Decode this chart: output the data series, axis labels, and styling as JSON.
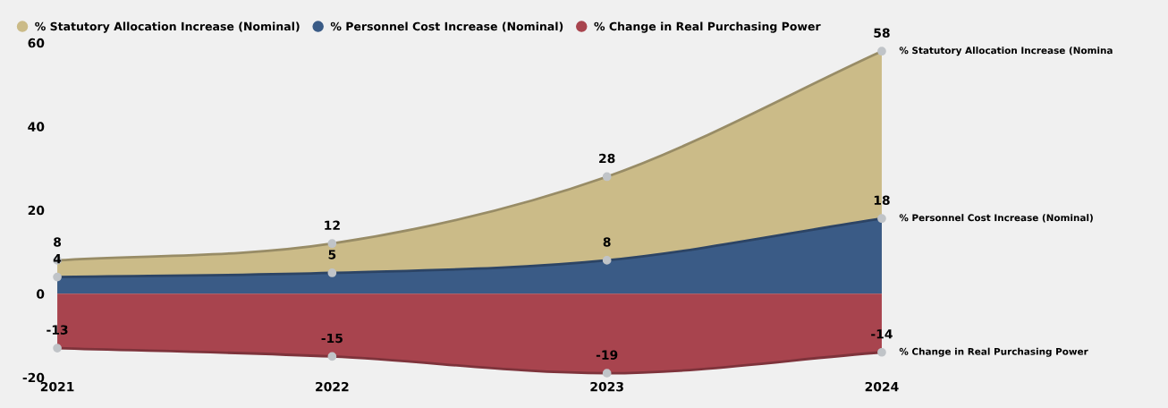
{
  "chart_data": {
    "type": "area",
    "categories": [
      "2021",
      "2022",
      "2023",
      "2024"
    ],
    "series": [
      {
        "name": "% Statutory Allocation Increase (Nominal)",
        "color": "#cbbb88",
        "values": [
          8,
          12,
          28,
          58
        ]
      },
      {
        "name": "% Personnel Cost Increase (Nominal)",
        "color": "#3a5b86",
        "values": [
          4,
          5,
          8,
          18
        ]
      },
      {
        "name": "% Change in Real Purchasing Power",
        "color": "#a8444e",
        "values": [
          -13,
          -15,
          -19,
          -14
        ]
      }
    ],
    "ylim": [
      -20,
      60
    ],
    "yticks": [
      -20,
      0,
      20,
      40,
      60
    ],
    "data_labels": true,
    "marker": "circle",
    "legend": "top left",
    "grid": false,
    "annotations": [
      {
        "text": "% Statutory Allocation Increase (Nomina",
        "x": "2024",
        "y": 58
      },
      {
        "text": "% Personnel Cost Increase (Nominal)",
        "x": "2024",
        "y": 18
      },
      {
        "text": "% Change in Real Purchasing Power",
        "x": "2024",
        "y": -14
      }
    ]
  }
}
